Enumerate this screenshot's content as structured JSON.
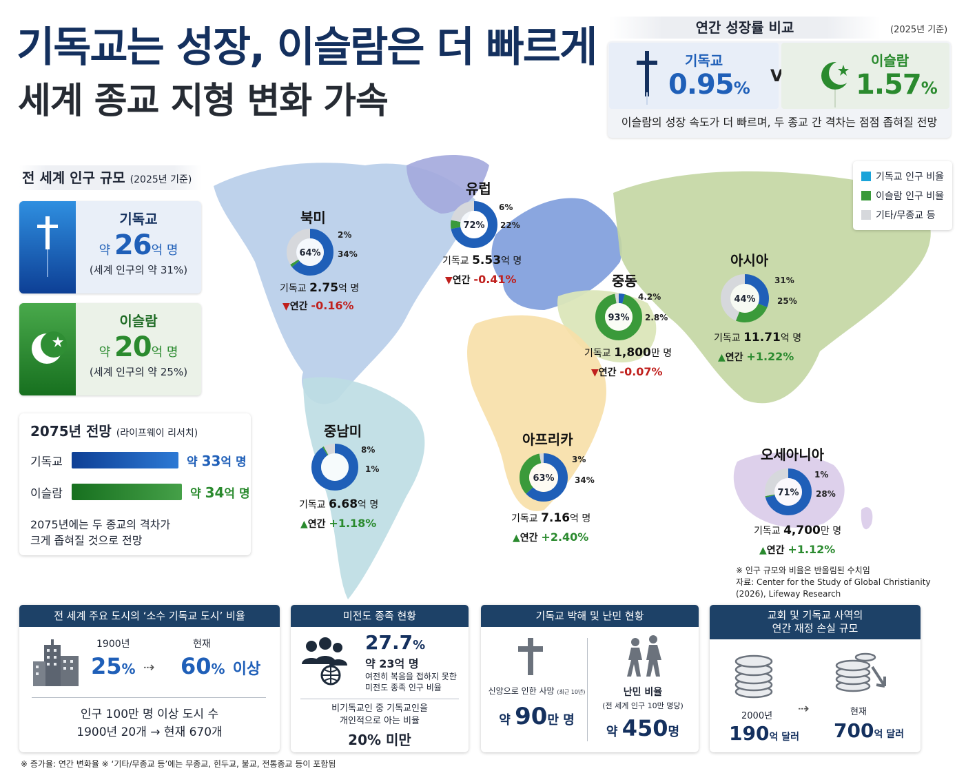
{
  "header": {
    "title_line1": "기독교는 성장, 이슬람은 더 빠르게",
    "title_line2": "세계 종교 지형 변화 가속"
  },
  "growth_compare": {
    "title": "연간 성장률 비교",
    "note": "(2025년 기준)",
    "christianity_label": "기독교",
    "christianity_value": "0.95",
    "islam_label": "이슬람",
    "islam_value": "1.57",
    "unit": "%",
    "vs": "VS",
    "description": "이슬람의 성장 속도가 더 빠르며, 두 종교 간 격차는 점점 좁혀질 전망"
  },
  "population": {
    "title": "전 세계 인구 규모",
    "note": "(2025년 기준)",
    "christianity": {
      "name": "기독교",
      "prefix": "약",
      "number": "26",
      "unit": "억 명",
      "share": "(세계 인구의 약 31%)"
    },
    "islam": {
      "name": "이슬람",
      "prefix": "약",
      "number": "20",
      "unit": "억 명",
      "share": "(세계 인구의 약 25%)"
    }
  },
  "forecast": {
    "title": "2075년 전망",
    "source": "(라이프웨이 리서치)",
    "rows": [
      {
        "label": "기독교",
        "prefix": "약",
        "number": "33",
        "unit": "억 명",
        "value": 33
      },
      {
        "label": "이슬람",
        "prefix": "약",
        "number": "34",
        "unit": "억 명",
        "value": 34
      }
    ],
    "note_line1": "2075년에는 두 종교의 격차가",
    "note_line2": "크게 좁혀질 것으로 전망"
  },
  "legend": {
    "christian": "기독교 인구 비율",
    "islam": "이슬람 인구 비율",
    "other": "기타/무종교 등"
  },
  "colors": {
    "christian": "#1f5fb8",
    "islam": "#3a9a3a",
    "other": "#d6d8dc",
    "header": "#1d4167"
  },
  "chart_data": {
    "type": "pie",
    "series_names": [
      "기독교 인구 비율",
      "이슬람 인구 비율",
      "기타/무종교 등"
    ],
    "regions": [
      {
        "name": "북미",
        "christian_pct": 64,
        "islam_pct": 2,
        "other_pct": 34,
        "inner_label": "64%",
        "labels": [
          "2%",
          "34%"
        ],
        "christians_prefix": "기독교",
        "christians_num": "2.75",
        "christians_unit": "억 명",
        "growth_label": "연간",
        "growth": "-0.16%",
        "direction": "down"
      },
      {
        "name": "유럽",
        "christian_pct": 72,
        "islam_pct": 6,
        "other_pct": 22,
        "inner_label": "72%",
        "labels": [
          "6%",
          "22%"
        ],
        "christians_prefix": "기독교",
        "christians_num": "5.53",
        "christians_unit": "억 명",
        "growth_label": "연간",
        "growth": "-0.41%",
        "direction": "down"
      },
      {
        "name": "중동",
        "christian_pct": 4.2,
        "islam_pct": 93,
        "other_pct": 2.8,
        "inner_label": "93%",
        "labels": [
          "4.2%",
          "2.8%"
        ],
        "christians_prefix": "기독교",
        "christians_num": "1,800",
        "christians_unit": "만 명",
        "growth_label": "연간",
        "growth": "-0.07%",
        "direction": "down"
      },
      {
        "name": "아시아",
        "christian_pct": 31,
        "islam_pct": 25,
        "other_pct": 44,
        "inner_label": "44%",
        "labels": [
          "31%",
          "25%"
        ],
        "christians_prefix": "기독교",
        "christians_num": "11.71",
        "christians_unit": "억 명",
        "growth_label": "연간",
        "growth": "+1.22%",
        "direction": "up"
      },
      {
        "name": "중남미",
        "christian_pct": 91,
        "islam_pct": 1,
        "other_pct": 8,
        "inner_label": "",
        "labels": [
          "8%",
          "1%"
        ],
        "christians_prefix": "기독교",
        "christians_num": "6.68",
        "christians_unit": "억 명",
        "growth_label": "연간",
        "growth": "+1.18%",
        "direction": "up"
      },
      {
        "name": "아프리카",
        "christian_pct": 63,
        "islam_pct": 34,
        "other_pct": 3,
        "inner_label": "63%",
        "labels": [
          "3%",
          "34%"
        ],
        "christians_prefix": "기독교",
        "christians_num": "7.16",
        "christians_unit": "억 명",
        "growth_label": "연간",
        "growth": "+2.40%",
        "direction": "up"
      },
      {
        "name": "오세아니아",
        "christian_pct": 71,
        "islam_pct": 1,
        "other_pct": 28,
        "inner_label": "71%",
        "labels": [
          "1%",
          "28%"
        ],
        "christians_prefix": "기독교",
        "christians_num": "4,700",
        "christians_unit": "만 명",
        "growth_label": "연간",
        "growth": "+1.12%",
        "direction": "up"
      }
    ]
  },
  "source_note": {
    "line1": "※ 인구 규모와 비율은 반올림된 수치임",
    "line2": "자료: Center for the Study of Global Christianity (2026), Lifeway Research"
  },
  "panels": {
    "cities": {
      "title": "전 세계 주요 도시의 ‘소수 기독교 도시’ 비율",
      "year_label": "1900년",
      "year_value": "25",
      "now_label": "현재",
      "now_value": "60",
      "now_suffix": "이상",
      "unit": "%",
      "bottom_line1": "인구 100만 명 이상 도시 수",
      "bottom_line2": "1900년 20개 → 현재 670개"
    },
    "unreached": {
      "title": "미전도 종족 현황",
      "percent": "27.7",
      "unit": "%",
      "people": "약 23억 명",
      "desc_line1": "여전히 복음을 접하지 못한",
      "desc_line2": "미전도 종족 인구 비율",
      "know_line1": "비기독교인 중 기독교인을",
      "know_line2": "개인적으로 아는 비율",
      "know_value": "20% 미만"
    },
    "persecution": {
      "title": "기독교 박해 및 난민 현황",
      "martyr_label": "신앙으로 인한 사망",
      "martyr_note": "(최근 10년)",
      "martyr_prefix": "약",
      "martyr_value": "90",
      "martyr_unit": "만 명",
      "refugee_label": "난민 비율",
      "refugee_note": "(전 세계 인구 10만 명당)",
      "refugee_prefix": "약",
      "refugee_value": "450",
      "refugee_unit": "명"
    },
    "finance": {
      "title_line1": "교회 및 기독교 사역의",
      "title_line2": "연간 재정 손실 규모",
      "from_label": "2000년",
      "from_value": "190",
      "to_label": "현재",
      "to_value": "700",
      "unit": "억 달러"
    }
  },
  "footer": "※ 증가율: 연간 변화율    ※ ‘기타/무종교 등’에는 무종교, 힌두교, 불교, 전통종교 등이 포함됨"
}
